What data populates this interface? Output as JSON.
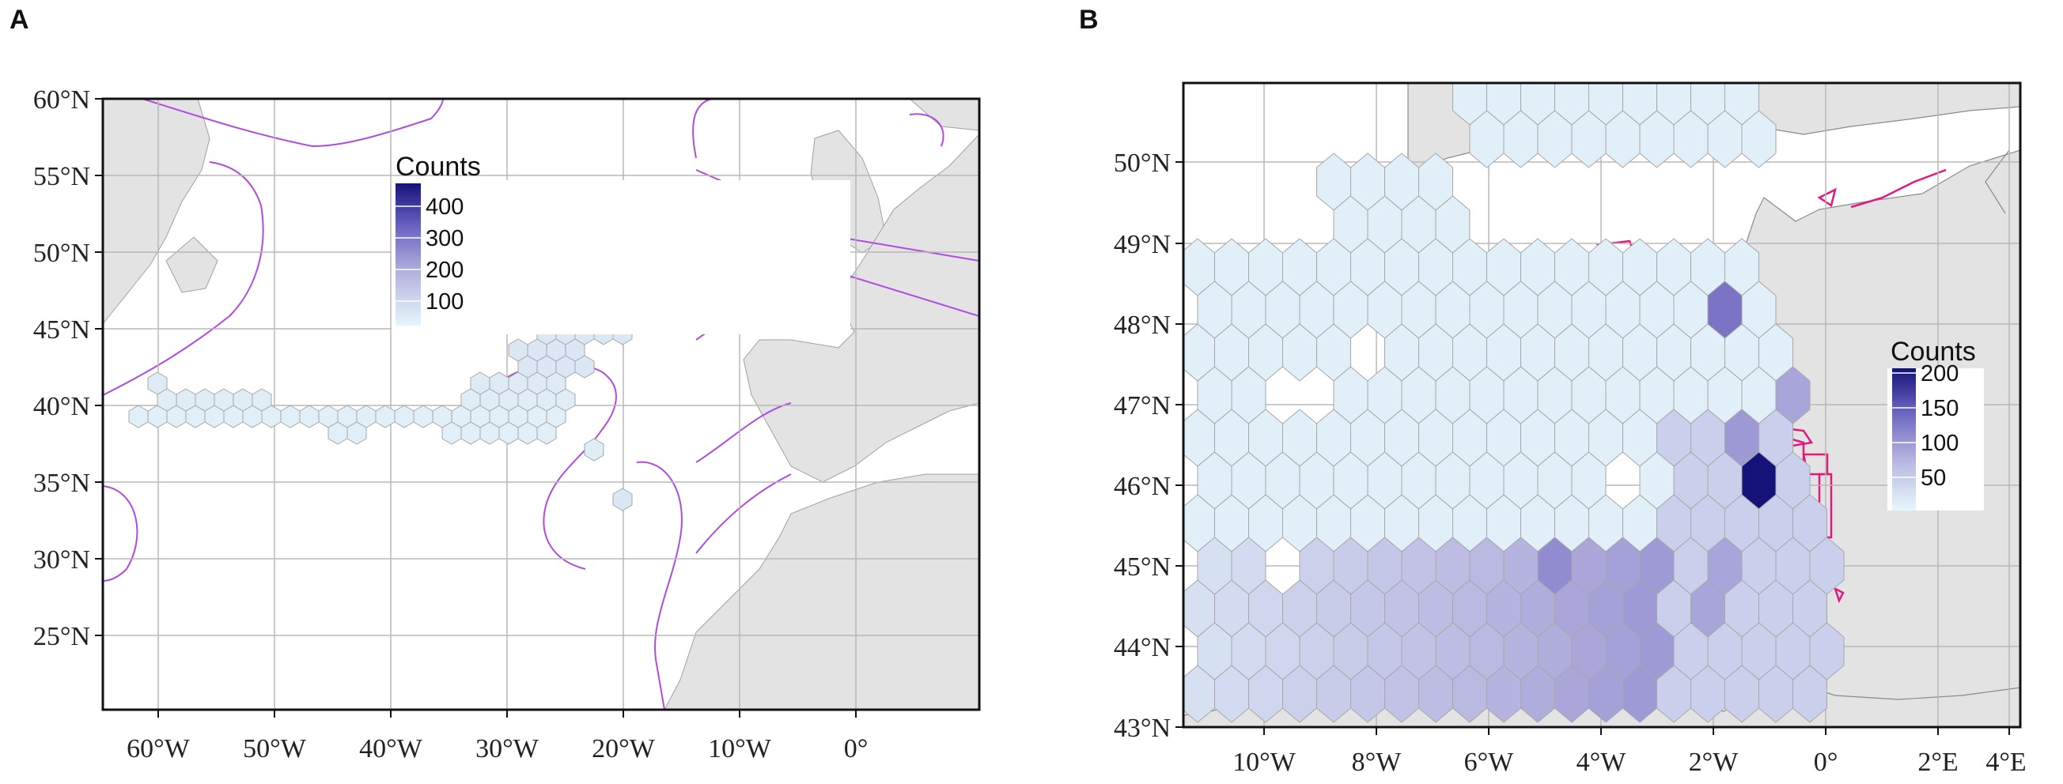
{
  "panels": [
    {
      "letter": "A",
      "x_ticks": [
        "60°W",
        "50°W",
        "40°W",
        "30°W",
        "20°W",
        "10°W",
        "0°"
      ],
      "y_ticks": [
        "60°N",
        "55°N",
        "50°N",
        "45°N",
        "40°N",
        "35°N",
        "30°N",
        "25°N"
      ],
      "legend": {
        "title": "Counts",
        "labels": [
          "400",
          "300",
          "200",
          "100"
        ]
      }
    },
    {
      "letter": "B",
      "x_ticks": [
        "10°W",
        "8°W",
        "6°W",
        "4°W",
        "2°W",
        "0°",
        "2°E",
        "4°E"
      ],
      "y_ticks": [
        "50°N",
        "49°N",
        "48°N",
        "47°N",
        "46°N",
        "45°N",
        "44°N",
        "43°N"
      ],
      "legend": {
        "title": "Counts",
        "labels": [
          "200",
          "150",
          "100",
          "50"
        ]
      }
    }
  ],
  "colors": {
    "land": "#e3e3e3",
    "ocean": "#ffffff",
    "grid": "#b8b8b8",
    "eez_boundary": "#b04be0",
    "mpa_boundary": "#e0197d",
    "count_low": "#e6f7fb",
    "count_high": "#15127a"
  }
}
